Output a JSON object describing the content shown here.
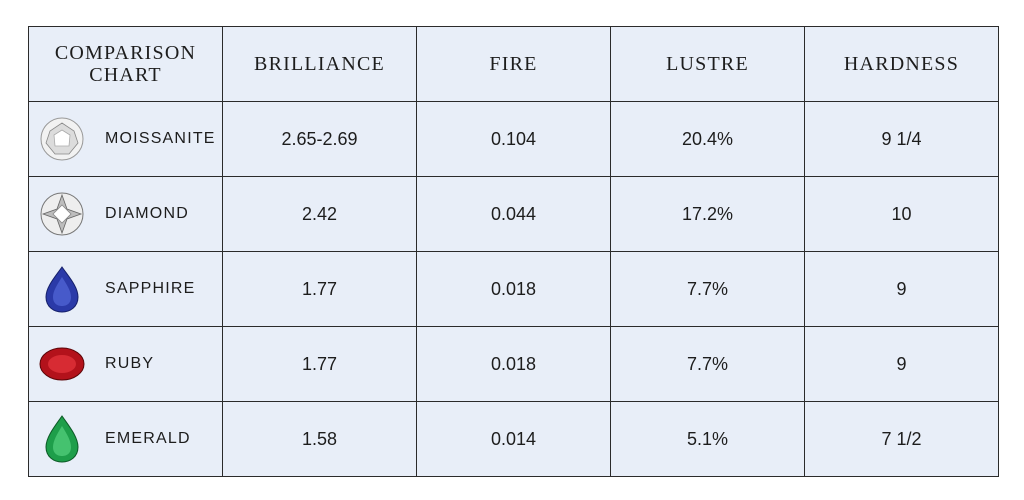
{
  "table": {
    "header": [
      "COMPARISON CHART",
      "BRILLIANCE",
      "FIRE",
      "LUSTRE",
      "HARDNESS"
    ],
    "rows": [
      [
        "MOISSANITE",
        "2.65-2.69",
        "0.104",
        "20.4%",
        "9 1/4"
      ],
      [
        "DIAMOND",
        "2.42",
        "0.044",
        "17.2%",
        "10"
      ],
      [
        "SAPPHIRE",
        "1.77",
        "0.018",
        "7.7%",
        "9"
      ],
      [
        "RUBY",
        "1.77",
        "0.018",
        "7.7%",
        "9"
      ],
      [
        "EMERALD",
        "1.58",
        "0.014",
        "5.1%",
        "7 1/2"
      ]
    ]
  }
}
